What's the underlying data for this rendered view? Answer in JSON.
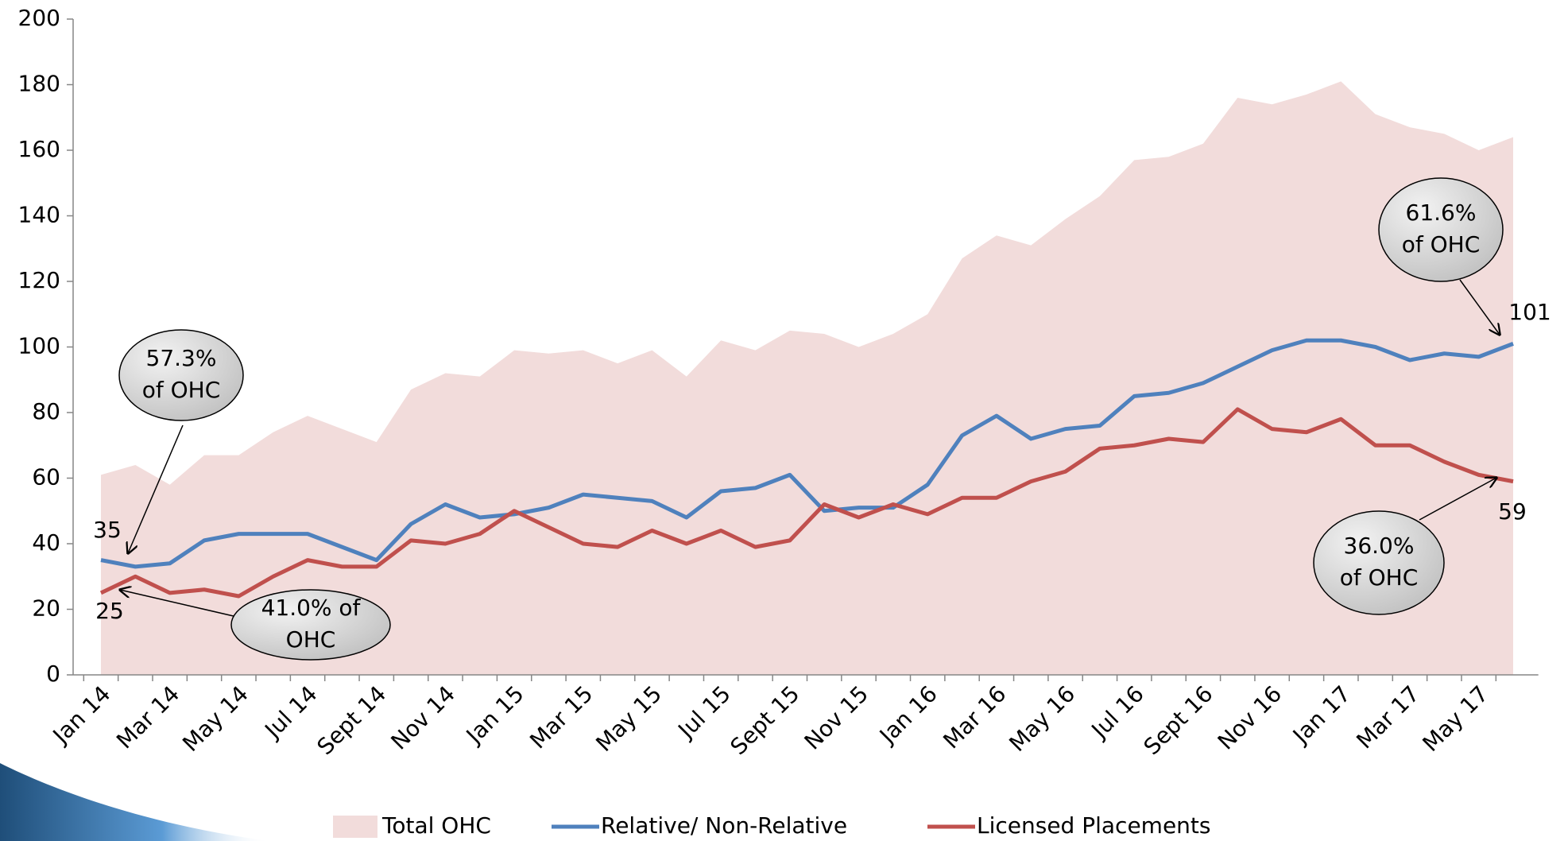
{
  "chart_data": {
    "type": "line",
    "categories": [
      "Jan 14",
      null,
      "Mar 14",
      null,
      "May 14",
      null,
      "Jul 14",
      null,
      "Sept 14",
      null,
      "Nov 14",
      null,
      "Jan 15",
      null,
      "Mar 15",
      null,
      "May 15",
      null,
      "Jul 15",
      null,
      "Sept 15",
      null,
      "Nov 15",
      null,
      "Jan 16",
      null,
      "Mar 16",
      null,
      "May 16",
      null,
      "Jul 16",
      null,
      "Sept 16",
      null,
      "Nov 16",
      null,
      "Jan 17",
      null,
      "Mar 17",
      null,
      "May 17",
      null
    ],
    "series": [
      {
        "name": "Total OHC",
        "color": "#f2dcdb",
        "kind": "area",
        "values": [
          61,
          64,
          58,
          67,
          67,
          74,
          79,
          75,
          71,
          87,
          92,
          91,
          99,
          98,
          99,
          95,
          99,
          91,
          102,
          99,
          105,
          104,
          100,
          104,
          110,
          127,
          134,
          131,
          139,
          146,
          157,
          158,
          162,
          176,
          174,
          177,
          181,
          171,
          167,
          165,
          160,
          164
        ]
      },
      {
        "name": "Relative/ Non-Relative",
        "color": "#4f81bd",
        "kind": "line",
        "values": [
          35,
          33,
          34,
          41,
          43,
          43,
          43,
          39,
          35,
          46,
          52,
          48,
          49,
          51,
          55,
          54,
          53,
          48,
          56,
          57,
          61,
          50,
          51,
          51,
          58,
          73,
          79,
          72,
          75,
          76,
          85,
          86,
          89,
          94,
          99,
          102,
          102,
          100,
          96,
          98,
          97,
          101
        ]
      },
      {
        "name": "Licensed Placements",
        "color": "#c0504d",
        "kind": "line",
        "values": [
          25,
          30,
          25,
          26,
          24,
          30,
          35,
          33,
          33,
          41,
          40,
          43,
          50,
          45,
          40,
          39,
          44,
          40,
          44,
          39,
          41,
          52,
          48,
          52,
          49,
          54,
          54,
          59,
          62,
          69,
          70,
          72,
          71,
          81,
          75,
          74,
          78,
          70,
          70,
          65,
          61,
          59
        ]
      }
    ],
    "annotations": [
      [
        "57.3%",
        "of OHC"
      ],
      [
        "41.0% of",
        "OHC"
      ],
      [
        "61.6%",
        "of OHC"
      ],
      [
        "36.0%",
        "of OHC"
      ]
    ],
    "ylim": [
      0,
      200
    ],
    "yticks": [
      0,
      20,
      40,
      60,
      80,
      100,
      120,
      140,
      160,
      180,
      200
    ],
    "grid": false,
    "legend": "bottom"
  }
}
